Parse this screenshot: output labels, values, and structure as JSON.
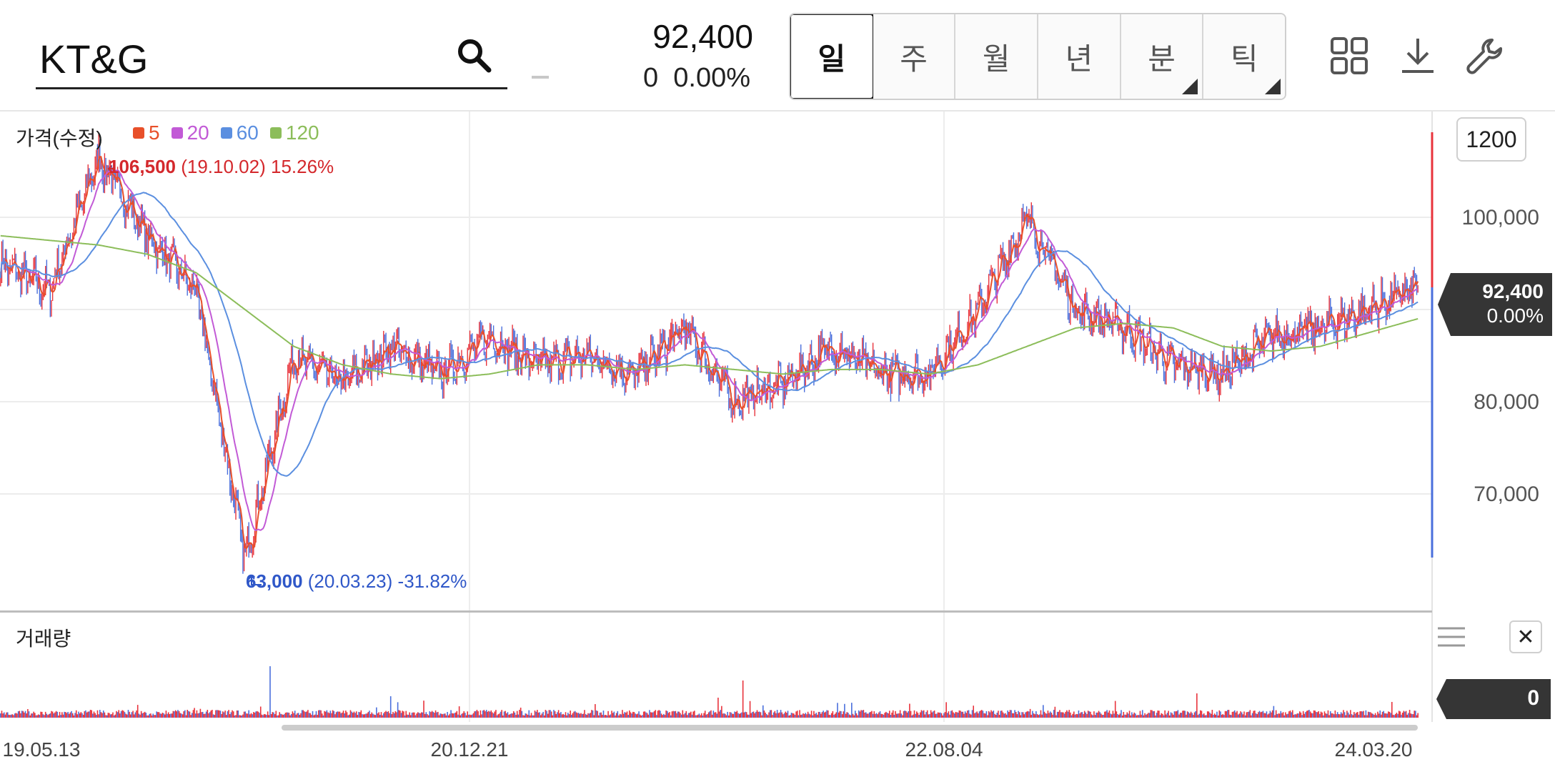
{
  "header": {
    "search_value": "KT&G",
    "price": "92,400",
    "change": "0  0.00%",
    "periods": [
      {
        "label": "일",
        "active": true,
        "submenu": false
      },
      {
        "label": "주",
        "active": false,
        "submenu": false
      },
      {
        "label": "월",
        "active": false,
        "submenu": false
      },
      {
        "label": "년",
        "active": false,
        "submenu": false
      },
      {
        "label": "분",
        "active": false,
        "submenu": true
      },
      {
        "label": "틱",
        "active": false,
        "submenu": true
      }
    ],
    "icons": [
      "search-icon",
      "minus-icon",
      "grid-icon",
      "download-icon",
      "wrench-icon"
    ]
  },
  "price_panel": {
    "title": "가격(수정)",
    "zoom": "1200",
    "current_price": "92,400",
    "current_change": "0.00%",
    "high_annotation": {
      "value": "106,500",
      "date": "(19.10.02)",
      "pct": "15.26%"
    },
    "low_annotation": {
      "value": "63,000",
      "date": "(20.03.23)",
      "pct": "-31.82%"
    }
  },
  "volume_panel": {
    "title": "거래량",
    "current_value": "0"
  },
  "colors": {
    "up": "#e8333c",
    "down": "#4a6fdc",
    "ma5": "#e8502a",
    "ma20": "#c25ad6",
    "ma60": "#5b8fe0",
    "ma120": "#8cbd5a"
  },
  "chart_data": {
    "type": "line",
    "series_kind": "candlestick price with moving averages",
    "legend": [
      {
        "name": "5",
        "color": "#e8502a"
      },
      {
        "name": "20",
        "color": "#c25ad6"
      },
      {
        "name": "60",
        "color": "#5b8fe0"
      },
      {
        "name": "120",
        "color": "#8cbd5a"
      }
    ],
    "x_ticks": [
      "19.05.13",
      "20.12.21",
      "22.08.04",
      "24.03.20"
    ],
    "y_ticks": [
      100000,
      80000,
      70000
    ],
    "y_tick_labels": [
      "100,000",
      "80,000",
      "70,000"
    ],
    "ylim": [
      60000,
      110000
    ],
    "x": [
      "19.05",
      "19.08",
      "19.10",
      "19.12",
      "20.02",
      "20.03",
      "20.05",
      "20.07",
      "20.09",
      "20.11",
      "20.12",
      "21.03",
      "21.05",
      "21.08",
      "21.10",
      "21.12",
      "22.02",
      "22.04",
      "22.06",
      "22.08",
      "22.10",
      "22.12",
      "23.02",
      "23.04",
      "23.06",
      "23.08",
      "23.10",
      "23.12",
      "24.02",
      "24.03"
    ],
    "series": [
      {
        "name": "Close",
        "values": [
          95000,
          92000,
          106500,
          98000,
          92000,
          63000,
          85000,
          82000,
          86000,
          83000,
          87000,
          84000,
          85000,
          83000,
          88000,
          80000,
          82000,
          86000,
          83000,
          83000,
          90000,
          100000,
          90000,
          88000,
          84000,
          83000,
          87000,
          88000,
          90000,
          92400
        ]
      },
      {
        "name": "120",
        "values": [
          98000,
          97500,
          97000,
          96000,
          94000,
          90000,
          86000,
          84000,
          83000,
          82500,
          83000,
          84000,
          84000,
          83500,
          84000,
          83500,
          83000,
          83500,
          83500,
          83000,
          84000,
          86000,
          88000,
          88500,
          88000,
          86000,
          85500,
          86000,
          87500,
          89000
        ]
      }
    ],
    "volume": {
      "ylim": [
        0,
        100
      ]
    }
  }
}
